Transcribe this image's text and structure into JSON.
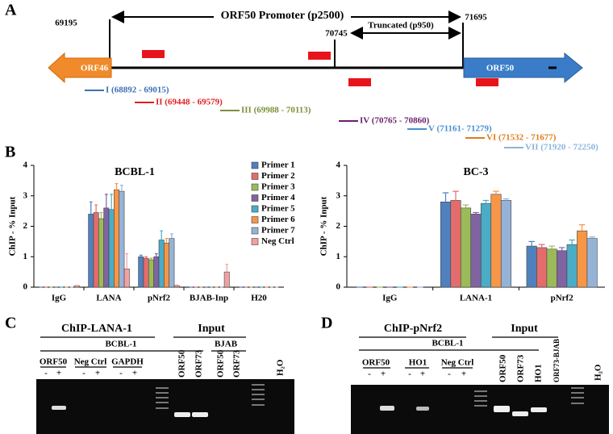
{
  "panel_a": {
    "label": "A",
    "promoter": "ORF50 Promoter (p2500)",
    "truncated": "Truncated (p950)",
    "positions": [
      "69195",
      "71695",
      "70745"
    ],
    "genes": [
      "ORF46",
      "ORF50"
    ],
    "primers": [
      {
        "label": "I (68892 - 69015)",
        "color": "#3d6fb3"
      },
      {
        "label": "II (69448 - 69579)",
        "color": "#e02020"
      },
      {
        "label": "III (69988 - 70113)",
        "color": "#7b8f3a"
      },
      {
        "label": "IV (70765 - 70860)",
        "color": "#6a1f6e"
      },
      {
        "label": "V (71161- 71279)",
        "color": "#4a8ed0"
      },
      {
        "label": "VI (71532 - 71677)",
        "color": "#e07b1a"
      },
      {
        "label": "VII (71920 - 72250)",
        "color": "#8ab3dc"
      }
    ]
  },
  "panel_b": {
    "label": "B"
  },
  "chart_data": [
    {
      "type": "bar",
      "title": "BCBL-1",
      "y_label": "ChIP - % Input",
      "categories": [
        "IgG",
        "LANA",
        "pNrf2",
        "BJAB-Inp",
        "H20"
      ],
      "series": [
        {
          "name": "Primer 1",
          "color": "#4f81bd",
          "values": [
            0,
            2.4,
            1.0,
            0,
            0
          ],
          "errors": [
            0,
            0.4,
            0.05,
            0,
            0
          ]
        },
        {
          "name": "Primer 2",
          "color": "#e46c6c",
          "values": [
            0,
            2.45,
            0.95,
            0,
            0
          ],
          "errors": [
            0,
            0.25,
            0.05,
            0,
            0
          ]
        },
        {
          "name": "Primer 3",
          "color": "#9bbb59",
          "values": [
            0,
            2.25,
            0.9,
            0,
            0
          ],
          "errors": [
            0,
            0.2,
            0.05,
            0,
            0
          ]
        },
        {
          "name": "Primer 4",
          "color": "#8064a2",
          "values": [
            0,
            2.6,
            1.0,
            0,
            0
          ],
          "errors": [
            0,
            0.45,
            0.1,
            0,
            0
          ]
        },
        {
          "name": "Primer 5",
          "color": "#4bacc6",
          "values": [
            0,
            2.55,
            1.55,
            0,
            0
          ],
          "errors": [
            0,
            0.5,
            0.3,
            0,
            0
          ]
        },
        {
          "name": "Primer 6",
          "color": "#f79646",
          "values": [
            0,
            3.2,
            1.45,
            0,
            0
          ],
          "errors": [
            0,
            0.2,
            0.15,
            0,
            0
          ]
        },
        {
          "name": "Primer 7",
          "color": "#95b3d7",
          "values": [
            0,
            3.15,
            1.6,
            0,
            0
          ],
          "errors": [
            0,
            0.2,
            0.15,
            0,
            0
          ]
        },
        {
          "name": "Neg Ctrl",
          "color": "#f2a0a0",
          "values": [
            0.05,
            0.6,
            0.05,
            0.5,
            0
          ],
          "errors": [
            0.01,
            0.5,
            0.02,
            0.25,
            0
          ]
        }
      ],
      "ylim": [
        0,
        4
      ],
      "yticks": [
        0,
        1,
        2,
        3,
        4
      ],
      "legend": "top-right"
    },
    {
      "type": "bar",
      "title": "BC-3",
      "y_label": "ChIP - % Input",
      "categories": [
        "IgG",
        "LANA-1",
        "pNrf2"
      ],
      "series": [
        {
          "color": "#4f81bd",
          "values": [
            0,
            2.8,
            1.35
          ],
          "errors": [
            0,
            0.3,
            0.15
          ]
        },
        {
          "color": "#e46c6c",
          "values": [
            0,
            2.85,
            1.3
          ],
          "errors": [
            0,
            0.3,
            0.1
          ]
        },
        {
          "color": "#9bbb59",
          "values": [
            0,
            2.6,
            1.25
          ],
          "errors": [
            0,
            0.1,
            0.1
          ]
        },
        {
          "color": "#8064a2",
          "values": [
            0,
            2.4,
            1.2
          ],
          "errors": [
            0,
            0.05,
            0.1
          ]
        },
        {
          "color": "#4bacc6",
          "values": [
            0,
            2.75,
            1.4
          ],
          "errors": [
            0,
            0.1,
            0.15
          ]
        },
        {
          "color": "#f79646",
          "values": [
            0,
            3.05,
            1.85
          ],
          "errors": [
            0,
            0.1,
            0.2
          ]
        },
        {
          "color": "#95b3d7",
          "values": [
            0,
            2.85,
            1.6
          ],
          "errors": [
            0,
            0.05,
            0.05
          ]
        }
      ],
      "ylim": [
        0,
        4
      ],
      "yticks": [
        0,
        1,
        2,
        3,
        4
      ]
    }
  ],
  "panel_c": {
    "label": "C",
    "groups": [
      "ChIP-LANA-1",
      "Input"
    ],
    "cell_lines": [
      "BCBL-1",
      "BJAB"
    ],
    "targets": [
      "ORF50",
      "Neg Ctrl",
      "GAPDH"
    ],
    "signs": [
      "-",
      "+",
      "-",
      "+",
      "-",
      "+"
    ],
    "input_lanes": [
      "ORF50",
      "ORF73",
      "ORF50",
      "ORF73"
    ],
    "water": "H₂O"
  },
  "panel_d": {
    "label": "D",
    "groups": [
      "ChIP-pNrf2",
      "Input"
    ],
    "cell_lines": [
      "BCBL-1"
    ],
    "targets": [
      "ORF50",
      "HO1",
      "Neg Ctrl"
    ],
    "signs": [
      "-",
      "+",
      "-",
      "+",
      "-",
      "+"
    ],
    "input_lanes": [
      "ORF50",
      "ORF73",
      "HO1",
      "ORF73-BJAB"
    ],
    "water": "H₂O"
  }
}
